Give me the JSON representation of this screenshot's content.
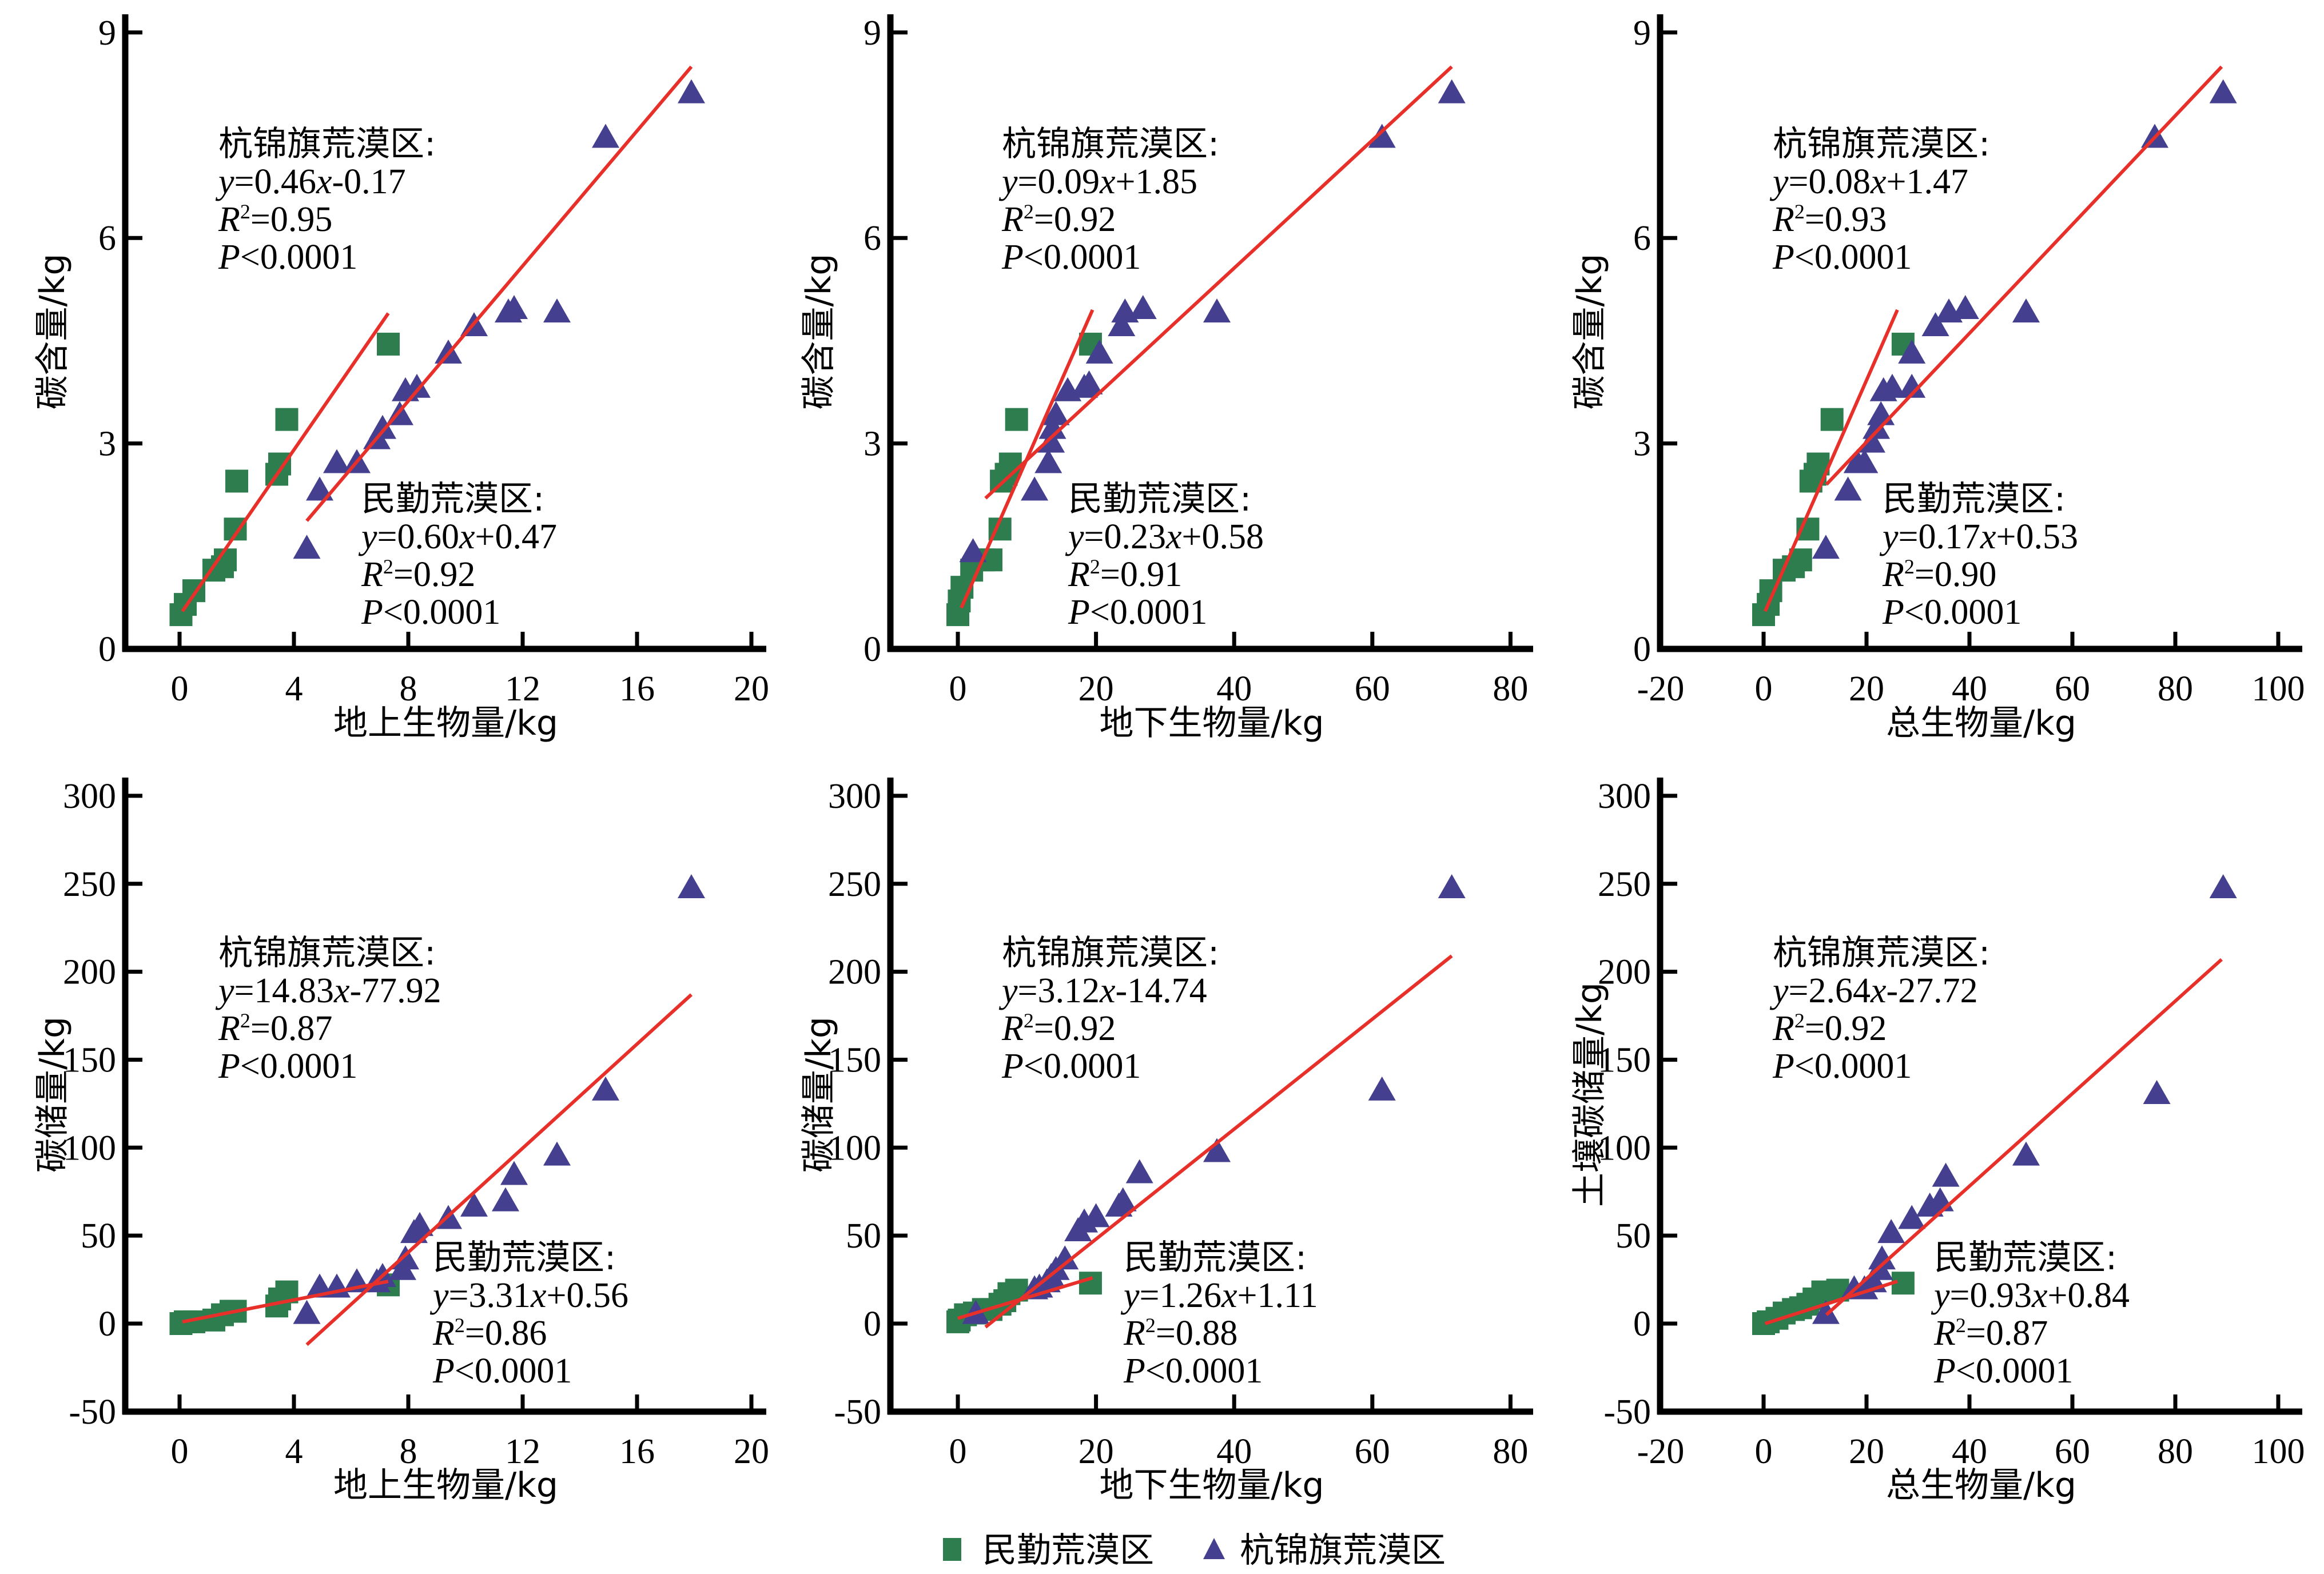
{
  "colors": {
    "minqin": "#2e7d4f",
    "hangjinqi": "#44408f",
    "fit_line": "#e8302a",
    "axis": "#000000"
  },
  "legend": {
    "items": [
      {
        "label": "民勤荒漠区",
        "marker": "square",
        "color": "#2e7d4f"
      },
      {
        "label": "杭锦旗荒漠区",
        "marker": "triangle",
        "color": "#44408f"
      }
    ]
  },
  "chart_data": [
    {
      "type": "scatter",
      "id": "p1",
      "xlabel": "地上生物量/kg",
      "ylabel": "碳含量/kg",
      "xlim": [
        -2.2,
        20.6
      ],
      "ylim": [
        0,
        9.3
      ],
      "xticks": [
        "0",
        "4",
        "8",
        "12",
        "16",
        "20"
      ],
      "xtick_values": [
        0,
        4,
        8,
        12,
        16,
        20
      ],
      "yticks": [
        "0",
        "3",
        "6",
        "9"
      ],
      "ytick_values": [
        0,
        3,
        6,
        9
      ],
      "annotations": [
        {
          "group": "杭锦旗荒漠区",
          "title": "杭锦旗荒漠区:",
          "eq_y": "y",
          "eq_mid": "=0.46",
          "eq_x": "x",
          "eq_end": "-0.17",
          "r_label": "R",
          "r_sup": "2",
          "r_value": "=0.95",
          "p_label": "P",
          "p_value": "<0.0001"
        },
        {
          "group": "民勤荒漠区",
          "title": "民勤荒漠区:",
          "eq_y": "y",
          "eq_mid": "=0.60",
          "eq_x": "x",
          "eq_end": "+0.47",
          "r_label": "R",
          "r_sup": "2",
          "r_value": "=0.92",
          "p_label": "P",
          "p_value": "<0.0001"
        }
      ],
      "series": [
        {
          "name": "民勤荒漠区",
          "marker": "square",
          "x": [
            0.05,
            0.2,
            0.5,
            1.2,
            1.5,
            1.6,
            1.95,
            2.0,
            3.4,
            3.5,
            3.75,
            7.3
          ],
          "y": [
            0.5,
            0.65,
            0.85,
            1.15,
            1.2,
            1.3,
            1.75,
            2.45,
            2.55,
            2.7,
            3.35,
            4.45
          ],
          "fit": {
            "x": [
              0.1,
              7.3
            ],
            "y": [
              0.55,
              4.9
            ]
          }
        },
        {
          "name": "杭锦旗荒漠区",
          "marker": "triangle",
          "x": [
            4.45,
            4.9,
            5.5,
            6.2,
            6.9,
            7.1,
            7.7,
            7.9,
            8.3,
            9.4,
            10.3,
            11.5,
            11.7,
            13.2,
            14.9,
            17.9
          ],
          "y": [
            1.45,
            2.3,
            2.7,
            2.7,
            3.05,
            3.2,
            3.4,
            3.75,
            3.8,
            4.3,
            4.7,
            4.9,
            4.95,
            4.9,
            7.45,
            8.1
          ],
          "fit": {
            "x": [
              4.45,
              17.9
            ],
            "y": [
              1.87,
              8.5
            ]
          }
        }
      ]
    },
    {
      "type": "scatter",
      "id": "p2",
      "xlabel": "地下生物量/kg",
      "ylabel": "碳含量/kg",
      "xlim": [
        -9.8,
        83.4
      ],
      "ylim": [
        0,
        9.3
      ],
      "xticks": [
        "0",
        "20",
        "40",
        "60",
        "80"
      ],
      "xtick_values": [
        0,
        20,
        40,
        60,
        80
      ],
      "yticks": [
        "0",
        "3",
        "6",
        "9"
      ],
      "ytick_values": [
        0,
        3,
        6,
        9
      ],
      "annotations": [
        {
          "group": "杭锦旗荒漠区",
          "title": "杭锦旗荒漠区:",
          "eq_y": "y",
          "eq_mid": "=0.09",
          "eq_x": "x",
          "eq_end": "+1.85",
          "r_label": "R",
          "r_sup": "2",
          "r_value": "=0.92",
          "p_label": "P",
          "p_value": "<0.0001"
        },
        {
          "group": "民勤荒漠区",
          "title": "民勤荒漠区:",
          "eq_y": "y",
          "eq_mid": "=0.23",
          "eq_x": "x",
          "eq_end": "+0.58",
          "r_label": "R",
          "r_sup": "2",
          "r_value": "=0.91",
          "p_label": "P",
          "p_value": "<0.0001"
        }
      ],
      "series": [
        {
          "name": "民勤荒漠区",
          "marker": "square",
          "x": [
            0.0,
            0.2,
            0.6,
            2.0,
            3.7,
            4.8,
            6.1,
            6.3,
            7.0,
            7.6,
            8.5,
            19.2
          ],
          "y": [
            0.5,
            0.7,
            0.9,
            1.15,
            1.3,
            1.3,
            1.75,
            2.45,
            2.55,
            2.7,
            3.35,
            4.45
          ],
          "fit": {
            "x": [
              0.5,
              19.5
            ],
            "y": [
              0.6,
              4.95
            ]
          }
        },
        {
          "name": "杭锦旗荒漠区",
          "marker": "triangle",
          "x": [
            2.2,
            11.1,
            13.1,
            13.5,
            13.7,
            14.2,
            15.9,
            18.3,
            19.0,
            20.5,
            23.7,
            24.2,
            26.8,
            37.5,
            61.4,
            71.5
          ],
          "y": [
            1.4,
            2.3,
            2.7,
            3.0,
            3.2,
            3.4,
            3.75,
            3.8,
            3.85,
            4.3,
            4.7,
            4.9,
            4.95,
            4.9,
            7.45,
            8.1
          ],
          "fit": {
            "x": [
              4.0,
              71.5
            ],
            "y": [
              2.2,
              8.5
            ]
          }
        }
      ]
    },
    {
      "type": "scatter",
      "id": "p3",
      "xlabel": "总生物量/kg",
      "ylabel": "碳含量/kg",
      "xlim": [
        -20,
        104.7
      ],
      "ylim": [
        0,
        9.3
      ],
      "xticks": [
        "-20",
        "0",
        "20",
        "40",
        "60",
        "80",
        "100"
      ],
      "xtick_values": [
        -20,
        0,
        20,
        40,
        60,
        80,
        100
      ],
      "yticks": [
        "0",
        "3",
        "6",
        "9"
      ],
      "ytick_values": [
        0,
        3,
        6,
        9
      ],
      "annotations": [
        {
          "group": "杭锦旗荒漠区",
          "title": "杭锦旗荒漠区:",
          "eq_y": "y",
          "eq_mid": "=0.08",
          "eq_x": "x",
          "eq_end": "+1.47",
          "r_label": "R",
          "r_sup": "2",
          "r_value": "=0.93",
          "p_label": "P",
          "p_value": "<0.0001"
        },
        {
          "group": "民勤荒漠区",
          "title": "民勤荒漠区:",
          "eq_y": "y",
          "eq_mid": "=0.17",
          "eq_x": "x",
          "eq_end": "+0.53",
          "r_label": "R",
          "r_sup": "2",
          "r_value": "=0.90",
          "p_label": "P",
          "p_value": "<0.0001"
        }
      ],
      "series": [
        {
          "name": "民勤荒漠区",
          "marker": "square",
          "x": [
            0.0,
            0.9,
            1.4,
            4.0,
            5.8,
            7.2,
            8.6,
            9.2,
            10.0,
            10.6,
            13.3,
            27.1
          ],
          "y": [
            0.5,
            0.65,
            0.85,
            1.15,
            1.2,
            1.3,
            1.75,
            2.45,
            2.55,
            2.7,
            3.35,
            4.45
          ],
          "fit": {
            "x": [
              0.3,
              26.0
            ],
            "y": [
              0.55,
              4.95
            ]
          }
        },
        {
          "name": "杭锦旗荒漠区",
          "marker": "triangle",
          "x": [
            12.1,
            16.4,
            18.2,
            19.6,
            21.0,
            21.9,
            22.8,
            23.3,
            25.0,
            28.8,
            28.8,
            33.4,
            36.0,
            39.2,
            51.0,
            76.0,
            89.3
          ],
          "y": [
            1.45,
            2.3,
            2.7,
            2.7,
            3.0,
            3.2,
            3.4,
            3.75,
            3.8,
            3.8,
            4.3,
            4.7,
            4.9,
            4.95,
            4.9,
            7.45,
            8.1
          ],
          "fit": {
            "x": [
              12.2,
              89.0
            ],
            "y": [
              2.4,
              8.5
            ]
          }
        }
      ]
    },
    {
      "type": "scatter",
      "id": "p4",
      "xlabel": "地上生物量/kg",
      "ylabel": "碳储量/kg",
      "xlim": [
        -2.2,
        20.6
      ],
      "ylim": [
        -50,
        310
      ],
      "xticks": [
        "0",
        "4",
        "8",
        "12",
        "16",
        "20"
      ],
      "xtick_values": [
        0,
        4,
        8,
        12,
        16,
        20
      ],
      "yticks": [
        "-50",
        "0",
        "50",
        "100",
        "150",
        "200",
        "250",
        "300"
      ],
      "ytick_values": [
        -50,
        0,
        50,
        100,
        150,
        200,
        250,
        300
      ],
      "annotations": [
        {
          "group": "杭锦旗荒漠区",
          "title": "杭锦旗荒漠区:",
          "eq_y": "y",
          "eq_mid": "=14.83",
          "eq_x": "x",
          "eq_end": "-77.92",
          "r_label": "R",
          "r_sup": "2",
          "r_value": "=0.87",
          "p_label": "P",
          "p_value": "<0.0001"
        },
        {
          "group": "民勤荒漠区",
          "title": "民勤荒漠区:",
          "eq_y": "y",
          "eq_mid": "=3.31",
          "eq_x": "x",
          "eq_end": "+0.56",
          "r_label": "R",
          "r_sup": "2",
          "r_value": "=0.86",
          "p_label": "P",
          "p_value": "<0.0001"
        }
      ],
      "series": [
        {
          "name": "民勤荒漠区",
          "marker": "square",
          "x": [
            0.05,
            0.2,
            0.5,
            1.2,
            1.5,
            1.8,
            1.95,
            3.4,
            3.5,
            3.75,
            7.3
          ],
          "y": [
            0,
            1,
            1,
            2,
            5,
            7,
            7,
            10,
            14,
            18,
            22
          ],
          "fit": {
            "x": [
              0.1,
              7.3
            ],
            "y": [
              1,
              24
            ]
          }
        },
        {
          "name": "杭锦旗荒漠区",
          "marker": "triangle",
          "x": [
            4.45,
            4.9,
            5.5,
            6.2,
            6.9,
            7.1,
            7.8,
            7.9,
            8.2,
            8.4,
            9.4,
            10.3,
            11.4,
            11.7,
            13.2,
            14.9,
            17.9
          ],
          "y": [
            5,
            20,
            20,
            23,
            23,
            26,
            30,
            36,
            51,
            55,
            59,
            66,
            69,
            84,
            95,
            132,
            247
          ],
          "fit": {
            "x": [
              4.45,
              17.9
            ],
            "y": [
              -12,
              187
            ]
          }
        }
      ]
    },
    {
      "type": "scatter",
      "id": "p5",
      "xlabel": "地下生物量/kg",
      "ylabel": "碳储量/kg",
      "xlim": [
        -9.8,
        83.4
      ],
      "ylim": [
        -50,
        310
      ],
      "xticks": [
        "0",
        "20",
        "40",
        "60",
        "80"
      ],
      "xtick_values": [
        0,
        20,
        40,
        60,
        80
      ],
      "yticks": [
        "-50",
        "0",
        "50",
        "100",
        "150",
        "200",
        "250",
        "300"
      ],
      "ytick_values": [
        -50,
        0,
        50,
        100,
        150,
        200,
        250,
        300
      ],
      "annotations": [
        {
          "group": "杭锦旗荒漠区",
          "title": "杭锦旗荒漠区:",
          "eq_y": "y",
          "eq_mid": "=3.12",
          "eq_x": "x",
          "eq_end": "-14.74",
          "r_label": "R",
          "r_sup": "2",
          "r_value": "=0.92",
          "p_label": "P",
          "p_value": "<0.0001"
        },
        {
          "group": "民勤荒漠区",
          "title": "民勤荒漠区:",
          "eq_y": "y",
          "eq_mid": "=1.26",
          "eq_x": "x",
          "eq_end": "+1.11",
          "r_label": "R",
          "r_sup": "2",
          "r_value": "=0.88",
          "p_label": "P",
          "p_value": "<0.0001"
        }
      ],
      "series": [
        {
          "name": "民勤荒漠区",
          "marker": "square",
          "x": [
            0.0,
            0.2,
            1.1,
            2.4,
            3.7,
            4.8,
            6.1,
            6.8,
            7.4,
            8.5,
            19.2
          ],
          "y": [
            1,
            2,
            5,
            6,
            8,
            8,
            11,
            13,
            17,
            19,
            23
          ],
          "fit": {
            "x": [
              0.0,
              19.5
            ],
            "y": [
              3,
              26
            ]
          }
        },
        {
          "name": "杭锦旗荒漠区",
          "marker": "triangle",
          "x": [
            2.6,
            11.1,
            11.8,
            12.9,
            13.5,
            14.2,
            15.5,
            17.4,
            18.3,
            20.0,
            23.3,
            23.9,
            26.3,
            37.5,
            61.4,
            71.5
          ],
          "y": [
            5,
            19,
            20,
            23,
            26,
            30,
            36,
            52,
            57,
            60,
            66,
            69,
            85,
            97,
            132,
            247
          ],
          "fit": {
            "x": [
              4.0,
              71.5
            ],
            "y": [
              -2,
              209
            ]
          }
        }
      ]
    },
    {
      "type": "scatter",
      "id": "p6",
      "xlabel": "总生物量/kg",
      "ylabel": "土壤碳储量/kg",
      "xlim": [
        -20,
        104.7
      ],
      "ylim": [
        -50,
        310
      ],
      "xticks": [
        "-20",
        "0",
        "20",
        "40",
        "60",
        "80",
        "100"
      ],
      "xtick_values": [
        -20,
        0,
        20,
        40,
        60,
        80,
        100
      ],
      "yticks": [
        "-50",
        "0",
        "50",
        "100",
        "150",
        "200",
        "250",
        "300"
      ],
      "ytick_values": [
        -50,
        0,
        50,
        100,
        150,
        200,
        250,
        300
      ],
      "annotations": [
        {
          "group": "杭锦旗荒漠区",
          "title": "杭锦旗荒漠区:",
          "eq_y": "y",
          "eq_mid": "=2.64",
          "eq_x": "x",
          "eq_end": "-27.72",
          "r_label": "R",
          "r_sup": "2",
          "r_value": "=0.92",
          "p_label": "P",
          "p_value": "<0.0001"
        },
        {
          "group": "民勤荒漠区",
          "title": "民勤荒漠区:",
          "eq_y": "y",
          "eq_mid": "=0.93",
          "eq_x": "x",
          "eq_end": "+0.84",
          "r_label": "R",
          "r_sup": "2",
          "r_value": "=0.87",
          "p_label": "P",
          "p_value": "<0.0001"
        }
      ],
      "series": [
        {
          "name": "民勤荒漠区",
          "marker": "square",
          "x": [
            0.0,
            0.9,
            2.6,
            4.0,
            5.8,
            7.2,
            8.6,
            9.8,
            11.5,
            14.4,
            27.1
          ],
          "y": [
            0,
            1,
            3,
            6,
            8,
            9,
            11,
            14,
            18,
            19,
            23
          ],
          "fit": {
            "x": [
              0.3,
              26.0
            ],
            "y": [
              0,
              24
            ]
          }
        },
        {
          "name": "杭锦旗荒漠区",
          "marker": "triangle",
          "x": [
            12.1,
            17.6,
            19.6,
            21.3,
            22.5,
            23.0,
            24.8,
            28.8,
            32.3,
            34.3,
            35.4,
            51.0,
            76.4,
            89.3
          ],
          "y": [
            5,
            19,
            19,
            23,
            30,
            36,
            51,
            59,
            66,
            69,
            83,
            95,
            130,
            247
          ],
          "fit": {
            "x": [
              12.2,
              89.0
            ],
            "y": [
              5,
              207
            ]
          }
        }
      ]
    }
  ]
}
